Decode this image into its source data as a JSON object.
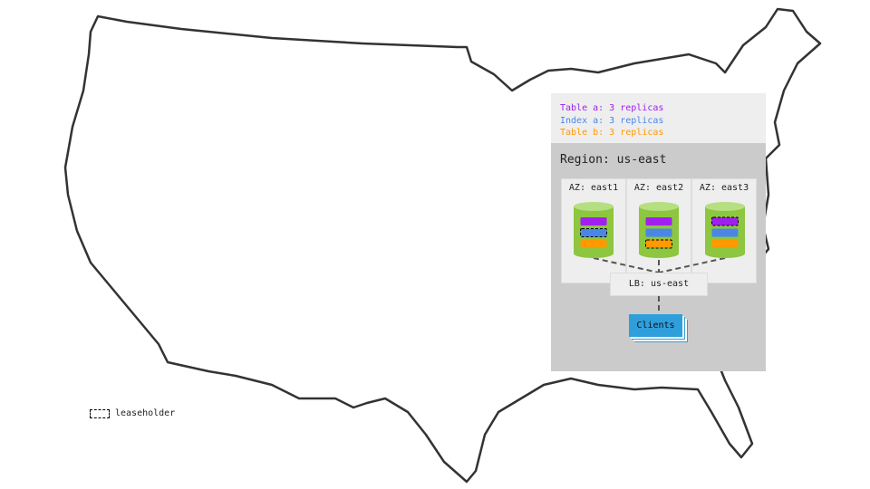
{
  "legend": {
    "items": [
      {
        "label": "Table a: 3 replicas",
        "color": "#a020f0"
      },
      {
        "label": "Index a: 3 replicas",
        "color": "#4a86e8"
      },
      {
        "label": "Table b: 3 replicas",
        "color": "#ff9900"
      }
    ]
  },
  "region": {
    "label": "Region: us-east"
  },
  "zones": [
    {
      "label": "AZ: east1",
      "leaseholder": "index"
    },
    {
      "label": "AZ: east2",
      "leaseholder": "table-b"
    },
    {
      "label": "AZ: east3",
      "leaseholder": "table-a"
    }
  ],
  "load_balancer": {
    "label": "LB: us-east"
  },
  "clients": {
    "label": "Clients"
  },
  "key": {
    "leaseholder_label": "leaseholder"
  },
  "colors": {
    "cylinder": "#8dc63f",
    "cylinder_top": "#b5df80",
    "clients": "#2f9fdc"
  }
}
